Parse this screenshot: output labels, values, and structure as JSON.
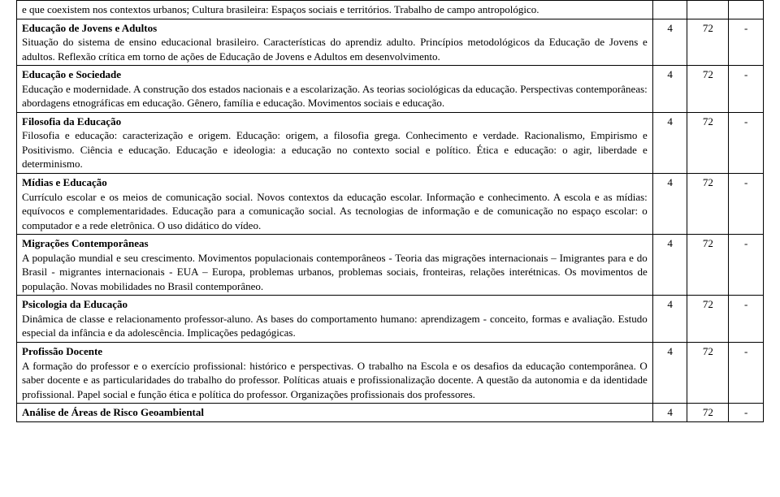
{
  "rows": [
    {
      "title": "",
      "body": "e que coexistem nos contextos urbanos; Cultura brasileira: Espaços sociais e territórios. Trabalho de campo antropológico.",
      "c1": "",
      "c2": "",
      "c3": ""
    },
    {
      "title": "Educação de Jovens e Adultos",
      "body": "Situação do sistema de ensino educacional brasileiro. Características do aprendiz adulto. Princípios metodológicos da Educação de Jovens e adultos. Reflexão crítica em torno de ações de Educação de Jovens e Adultos em desenvolvimento.",
      "c1": "4",
      "c2": "72",
      "c3": "-"
    },
    {
      "title": "Educação e Sociedade",
      "body": "Educação e modernidade. A construção dos estados nacionais e a escolarização. As teorias sociológicas da educação. Perspectivas contemporâneas: abordagens etnográficas em educação. Gênero, família e educação. Movimentos sociais e educação.",
      "c1": "4",
      "c2": "72",
      "c3": "-"
    },
    {
      "title": "Filosofia da Educação",
      "body": "Filosofia e educação: caracterização e origem. Educação: origem, a filosofia grega. Conhecimento e verdade. Racionalismo, Empirismo e Positivismo. Ciência e educação. Educação e ideologia: a educação no contexto social e político. Ética e educação: o agir, liberdade e determinismo.",
      "c1": "4",
      "c2": "72",
      "c3": "-"
    },
    {
      "title": "Mídias e Educação",
      "body": "Currículo escolar e os meios de comunicação social. Novos contextos da educação escolar. Informação e conhecimento. A escola e as mídias: equívocos e complementaridades. Educação para a comunicação social. As tecnologias de informação e de comunicação no espaço escolar: o computador e a rede eletrônica. O uso didático do vídeo.",
      "c1": "4",
      "c2": "72",
      "c3": "-"
    },
    {
      "title": "Migrações Contemporâneas",
      "body": "A população mundial e seu crescimento. Movimentos populacionais contemporâneos - Teoria das migrações internacionais – Imigrantes para e do Brasil - migrantes internacionais - EUA – Europa, problemas urbanos, problemas sociais, fronteiras, relações interétnicas. Os movimentos de população. Novas mobilidades no Brasil contemporâneo.",
      "c1": "4",
      "c2": "72",
      "c3": "-"
    },
    {
      "title": "Psicologia da Educação",
      "body": "Dinâmica de classe e relacionamento professor-aluno. As bases do comportamento humano: aprendizagem - conceito, formas e avaliação. Estudo especial da infância e da adolescência. Implicações pedagógicas.",
      "c1": "4",
      "c2": "72",
      "c3": "-"
    },
    {
      "title": "Profissão Docente",
      "body": "A formação do professor e o exercício profissional: histórico e perspectivas. O trabalho na Escola e os desafios da educação contemporânea. O saber docente e as particularidades do trabalho do professor. Políticas atuais e profissionalização docente. A questão da autonomia e da identidade profissional. Papel social e função ética e política do professor. Organizações profissionais dos professores.",
      "c1": "4",
      "c2": "72",
      "c3": "-"
    },
    {
      "title": "Análise de Áreas de Risco Geoambiental",
      "body": "",
      "c1": "4",
      "c2": "72",
      "c3": "-"
    }
  ]
}
